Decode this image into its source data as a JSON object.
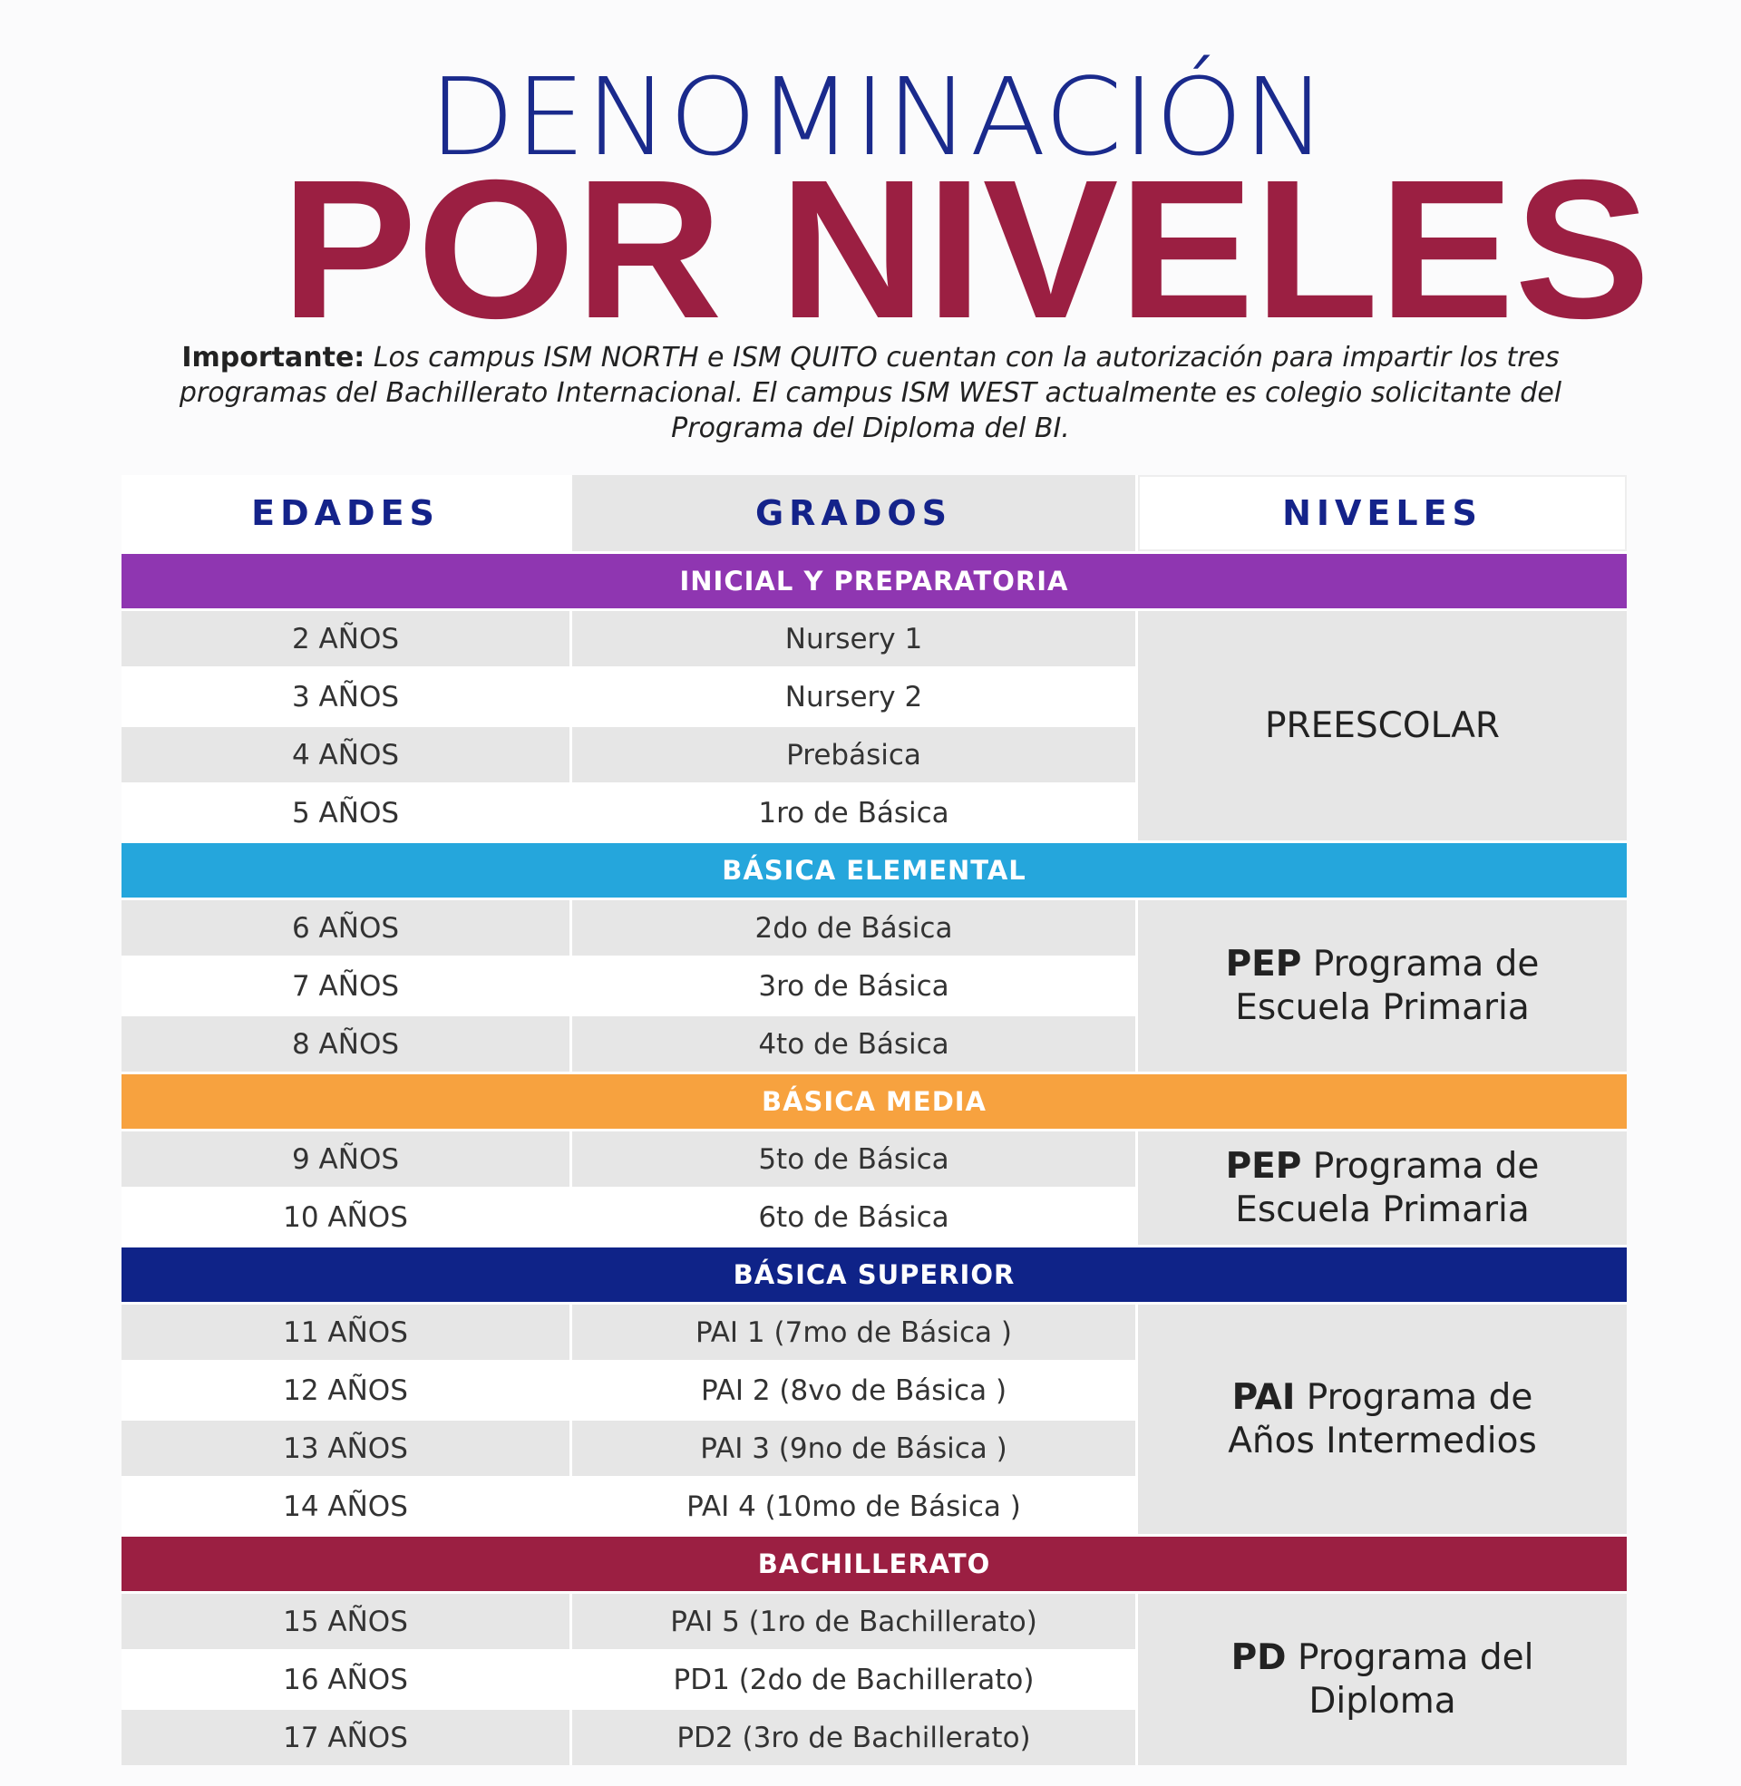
{
  "title": {
    "line1": "DENOMINACIÓN",
    "line2": "POR NIVELES"
  },
  "note": {
    "label": "Importante:",
    "text": "Los campus ISM NORTH e ISM QUITO cuentan con la autorización para impartir los tres programas del Bachillerato Internacional. El campus ISM WEST actualmente es colegio solicitante del Programa del Diploma del BI."
  },
  "table": {
    "headers": [
      "EDADES",
      "GRADOS",
      "NIVELES"
    ],
    "sections": [
      {
        "name": "INICIAL Y PREPARATORIA",
        "color": "#8f36b1",
        "rows": [
          [
            "2 AÑOS",
            "Nursery 1"
          ],
          [
            "3 AÑOS",
            "Nursery 2"
          ],
          [
            "4 AÑOS",
            "Prebásica"
          ],
          [
            "5 AÑOS",
            "1ro de Básica"
          ]
        ],
        "level": {
          "name": "PREESCOLAR"
        }
      },
      {
        "name": "BÁSICA ELEMENTAL",
        "color": "#25a6dc",
        "rows": [
          [
            "6 AÑOS",
            "2do de Básica"
          ],
          [
            "7 AÑOS",
            "3ro de Básica"
          ],
          [
            "8 AÑOS",
            "4to de Básica"
          ]
        ],
        "level": {
          "abbr": "PEP",
          "name": "Programa de Escuela Primaria"
        }
      },
      {
        "name": "BÁSICA MEDIA",
        "color": "#f7a23f",
        "rows": [
          [
            "9 AÑOS",
            "5to de Básica"
          ],
          [
            "10 AÑOS",
            "6to de Básica"
          ]
        ],
        "level": {
          "abbr": "PEP",
          "name": "Programa de Escuela Primaria"
        }
      },
      {
        "name": "BÁSICA SUPERIOR",
        "color": "#0f2388",
        "rows": [
          [
            "11 AÑOS",
            "PAI 1 (7mo de Básica )"
          ],
          [
            "12 AÑOS",
            "PAI 2 (8vo de Básica )"
          ],
          [
            "13 AÑOS",
            "PAI 3 (9no de Básica )"
          ],
          [
            "14 AÑOS",
            "PAI 4 (10mo de Básica )"
          ]
        ],
        "level": {
          "abbr": "PAI",
          "name": "Programa de Años Intermedios"
        }
      },
      {
        "name": "BACHILLERATO",
        "color": "#9b1f42",
        "rows": [
          [
            "15 AÑOS",
            "PAI 5 (1ro de Bachillerato)"
          ],
          [
            "16 AÑOS",
            "PD1 (2do de Bachillerato)"
          ],
          [
            "17 AÑOS",
            "PD2 (3ro de Bachillerato)"
          ]
        ],
        "level": {
          "abbr": "PD",
          "name": "Programa del Diploma"
        }
      }
    ]
  }
}
